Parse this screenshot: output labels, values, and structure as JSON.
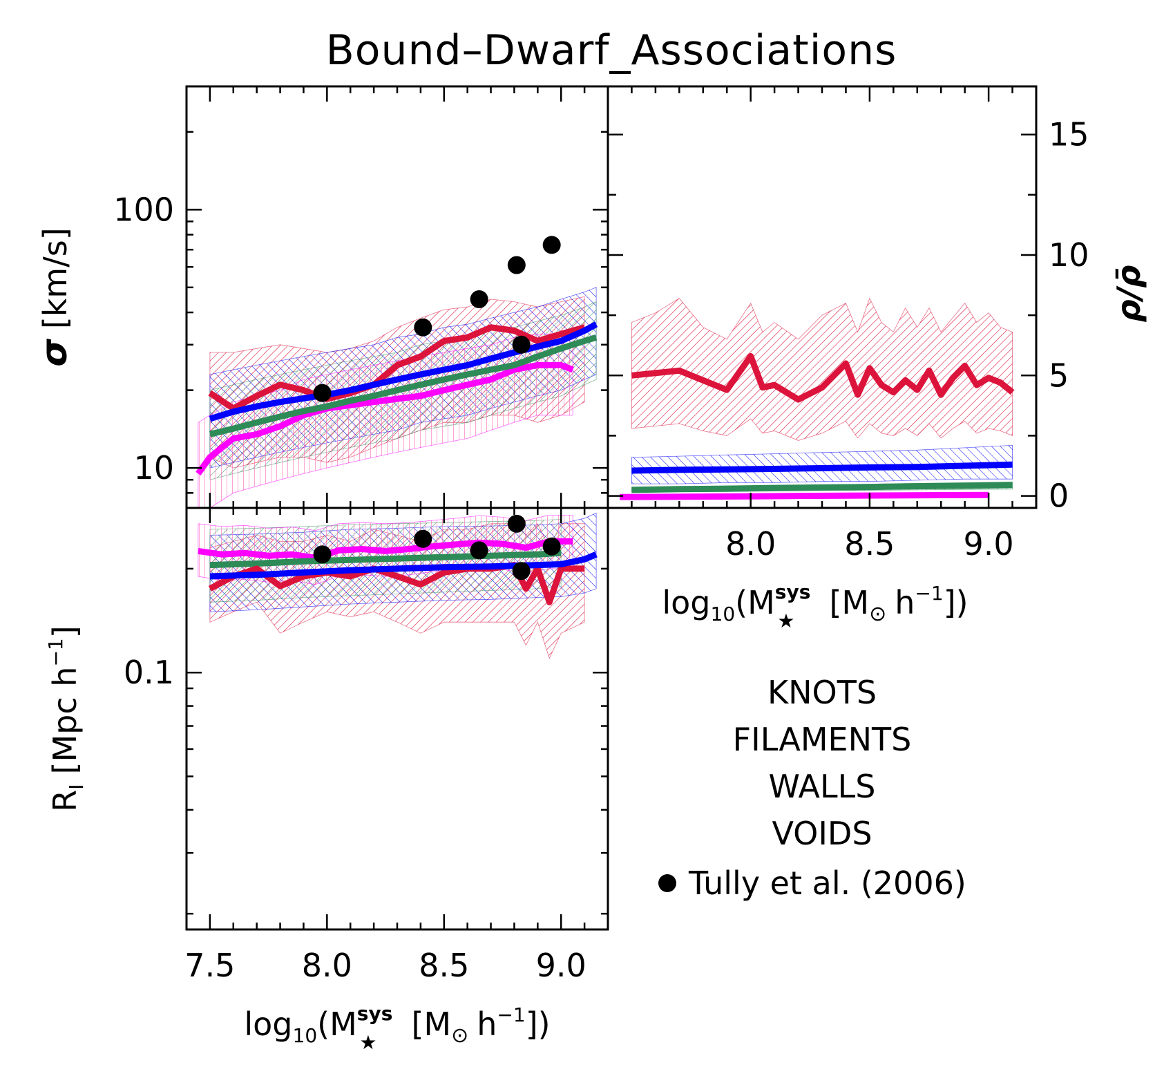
{
  "title": "Bound–Dwarf_Associations",
  "colors": {
    "knots": "#dc143c",
    "filaments": "#0000ff",
    "walls": "#2e8b57",
    "voids": "#ff00ff",
    "tully": "#000000"
  },
  "chart_data": [
    {
      "panel": "sigma",
      "type": "line",
      "ylabel": "σ [km/s]",
      "yscale": "log",
      "xlim": [
        7.4,
        9.2
      ],
      "ylim": [
        7,
        300
      ],
      "yticks": [
        10,
        100
      ],
      "ytick_labels": [
        "10",
        "100"
      ],
      "xticks": [
        7.5,
        8.0,
        8.5,
        9.0
      ],
      "series": [
        {
          "name": "KNOTS",
          "x": [
            7.5,
            7.6,
            7.7,
            7.8,
            7.9,
            8.0,
            8.1,
            8.2,
            8.3,
            8.4,
            8.5,
            8.6,
            8.7,
            8.8,
            8.9,
            9.0,
            9.1
          ],
          "y": [
            19.5,
            17,
            19,
            21,
            20,
            18.5,
            19.5,
            21,
            25,
            27,
            31,
            32,
            35,
            34,
            31,
            33,
            35
          ],
          "lo": [
            11,
            10,
            10.5,
            11,
            11,
            10.5,
            11,
            12,
            13,
            14,
            15,
            15,
            16,
            16,
            15,
            16,
            18
          ],
          "hi": [
            28,
            28,
            29,
            30,
            29,
            28,
            29,
            31,
            35,
            38,
            41,
            42,
            45,
            44,
            42,
            44,
            46
          ]
        },
        {
          "name": "FILAMENTS",
          "x": [
            7.5,
            7.6,
            7.7,
            7.8,
            7.9,
            8.0,
            8.1,
            8.2,
            8.3,
            8.4,
            8.5,
            8.6,
            8.7,
            8.8,
            8.9,
            9.0,
            9.1,
            9.15
          ],
          "y": [
            15.5,
            16.5,
            17.3,
            18,
            18.6,
            19.2,
            20,
            21,
            22,
            23,
            24,
            25,
            26.5,
            28,
            29.5,
            31,
            34,
            36
          ],
          "lo": [
            10,
            10.5,
            11,
            11.5,
            12,
            12.5,
            13,
            13.5,
            14,
            15,
            15.5,
            16,
            17,
            18,
            19,
            20,
            22,
            23
          ],
          "hi": [
            23,
            24,
            25,
            26,
            27,
            28,
            29,
            30,
            32,
            33,
            35,
            36,
            38,
            40,
            42,
            45,
            48,
            50
          ]
        },
        {
          "name": "WALLS",
          "x": [
            7.5,
            7.6,
            7.7,
            7.8,
            7.9,
            8.0,
            8.1,
            8.2,
            8.3,
            8.4,
            8.5,
            8.6,
            8.7,
            8.8,
            8.9,
            9.0,
            9.1,
            9.15
          ],
          "y": [
            13.5,
            14.2,
            15,
            15.8,
            16.6,
            17.3,
            18.2,
            19,
            20,
            21,
            22,
            23,
            24,
            25,
            27,
            29,
            31,
            32
          ],
          "lo": [
            9,
            9.5,
            10,
            10.5,
            11,
            11.5,
            12,
            12.5,
            13,
            14,
            14.5,
            15,
            16,
            17,
            18,
            19,
            21,
            22
          ],
          "hi": [
            20,
            21,
            22,
            23,
            24,
            25,
            26,
            27,
            28,
            30,
            31,
            32,
            34,
            35,
            37,
            39,
            42,
            44
          ]
        },
        {
          "name": "VOIDS",
          "x": [
            7.45,
            7.5,
            7.6,
            7.7,
            7.8,
            7.9,
            8.0,
            8.1,
            8.2,
            8.3,
            8.4,
            8.5,
            8.6,
            8.7,
            8.8,
            8.9,
            9.0,
            9.05
          ],
          "y": [
            9.5,
            11,
            13,
            13.5,
            14.5,
            16,
            17,
            17.5,
            18,
            18.5,
            19,
            20,
            21,
            22,
            24,
            25,
            25,
            24
          ],
          "lo": [
            6.5,
            7,
            8,
            8.5,
            9,
            9.5,
            10,
            10.5,
            11,
            11.5,
            12,
            12.5,
            13,
            14,
            15,
            16,
            16,
            16
          ],
          "hi": [
            15,
            16,
            18,
            19,
            20,
            22,
            23,
            24,
            25,
            26,
            27,
            28,
            29,
            30,
            32,
            33,
            33,
            32
          ]
        }
      ],
      "points": {
        "name": "Tully et al. (2006)",
        "x": [
          7.98,
          8.41,
          8.65,
          8.81,
          8.83,
          8.96
        ],
        "y": [
          19.5,
          35,
          45,
          61,
          30,
          73
        ]
      }
    },
    {
      "panel": "rho",
      "type": "line",
      "ylabel": "ρ/ρ̄",
      "ylim": [
        -0.5,
        17
      ],
      "yticks": [
        0,
        5,
        10,
        15
      ],
      "ytick_labels": [
        "0",
        "5",
        "10",
        "15"
      ],
      "xlim": [
        7.4,
        9.2
      ],
      "xticks": [
        8.0,
        8.5,
        9.0
      ],
      "xtick_labels": [
        "8.0",
        "8.5",
        "9.0"
      ],
      "xlabel_base": "log",
      "xlabel_sub": "10",
      "xlabel_mid": "(M",
      "xlabel_sup": "sys",
      "xlabel_star": "★",
      "xlabel_unit": "[M",
      "xlabel_sun": "⊙",
      "xlabel_h": "h",
      "xlabel_exp": "−1",
      "xlabel_end": "])",
      "series": [
        {
          "name": "KNOTS",
          "x": [
            7.5,
            7.6,
            7.7,
            7.8,
            7.9,
            8.0,
            8.05,
            8.1,
            8.2,
            8.3,
            8.4,
            8.45,
            8.5,
            8.55,
            8.6,
            8.65,
            8.7,
            8.75,
            8.8,
            8.85,
            8.9,
            8.95,
            9.0,
            9.05,
            9.1
          ],
          "y": [
            5.0,
            5.1,
            5.2,
            4.8,
            4.4,
            5.8,
            4.5,
            4.6,
            4.0,
            4.5,
            5.5,
            4.2,
            5.3,
            4.6,
            4.3,
            4.8,
            4.4,
            5.2,
            4.2,
            4.9,
            5.4,
            4.6,
            4.9,
            4.7,
            4.3
          ],
          "lo": [
            2.8,
            2.9,
            3.0,
            2.7,
            2.5,
            3.2,
            2.6,
            2.7,
            2.3,
            2.6,
            3.1,
            2.4,
            3.0,
            2.6,
            2.5,
            2.8,
            2.5,
            3.0,
            2.4,
            2.8,
            3.1,
            2.6,
            2.8,
            2.7,
            2.5
          ],
          "hi": [
            7.2,
            7.6,
            8.2,
            7.0,
            6.5,
            8.0,
            6.8,
            7.2,
            6.5,
            7.5,
            8.0,
            6.8,
            8.2,
            7.2,
            6.8,
            7.8,
            7.0,
            7.8,
            6.8,
            7.4,
            8.0,
            7.2,
            7.6,
            7.0,
            6.8
          ]
        },
        {
          "name": "FILAMENTS",
          "x": [
            7.5,
            7.7,
            7.9,
            8.1,
            8.3,
            8.5,
            8.7,
            8.9,
            9.1
          ],
          "y": [
            1.05,
            1.08,
            1.1,
            1.12,
            1.15,
            1.18,
            1.2,
            1.25,
            1.3
          ],
          "lo": [
            0.5,
            0.5,
            0.55,
            0.55,
            0.6,
            0.6,
            0.65,
            0.7,
            0.7
          ],
          "hi": [
            1.6,
            1.65,
            1.7,
            1.75,
            1.8,
            1.85,
            1.9,
            2.0,
            2.1
          ]
        },
        {
          "name": "WALLS",
          "x": [
            7.5,
            7.7,
            7.9,
            8.1,
            8.3,
            8.5,
            8.7,
            8.9,
            9.1
          ],
          "y": [
            0.25,
            0.28,
            0.3,
            0.33,
            0.35,
            0.37,
            0.4,
            0.42,
            0.45
          ],
          "lo": [
            0.15,
            0.17,
            0.18,
            0.2,
            0.22,
            0.23,
            0.25,
            0.27,
            0.28
          ],
          "hi": [
            0.35,
            0.38,
            0.4,
            0.43,
            0.46,
            0.49,
            0.52,
            0.55,
            0.58
          ]
        },
        {
          "name": "VOIDS",
          "x": [
            7.45,
            7.6,
            7.8,
            8.0,
            8.2,
            8.4,
            8.6,
            8.8,
            9.0
          ],
          "y": [
            -0.05,
            -0.04,
            -0.03,
            -0.02,
            0.0,
            0.01,
            0.02,
            0.03,
            0.04
          ]
        }
      ]
    },
    {
      "panel": "radius",
      "type": "line",
      "ylabel_main": "R",
      "ylabel_sub": "I",
      "ylabel_unit": "[Mpc h",
      "ylabel_exp": "−1",
      "ylabel_end": "]",
      "yscale": "log",
      "ylim": [
        0.018,
        0.3
      ],
      "yticks": [
        0.1
      ],
      "ytick_labels": [
        "0.1"
      ],
      "xlim": [
        7.4,
        9.2
      ],
      "xticks": [
        7.5,
        8.0,
        8.5,
        9.0
      ],
      "xtick_labels": [
        "7.5",
        "8.0",
        "8.5",
        "9.0"
      ],
      "xlabel_base": "log",
      "xlabel_sub": "10",
      "xlabel_mid": "(M",
      "xlabel_sup": "sys",
      "xlabel_star": "★",
      "xlabel_unit": "[M",
      "xlabel_sun": "⊙",
      "xlabel_h": "h",
      "xlabel_exp": "−1",
      "xlabel_end": "])",
      "series": [
        {
          "name": "KNOTS",
          "x": [
            7.5,
            7.6,
            7.7,
            7.8,
            7.9,
            8.0,
            8.1,
            8.2,
            8.3,
            8.4,
            8.5,
            8.6,
            8.7,
            8.8,
            8.85,
            8.9,
            8.95,
            9.0,
            9.1
          ],
          "y": [
            0.175,
            0.19,
            0.2,
            0.178,
            0.19,
            0.195,
            0.19,
            0.2,
            0.19,
            0.18,
            0.195,
            0.2,
            0.2,
            0.205,
            0.175,
            0.2,
            0.16,
            0.2,
            0.2
          ],
          "lo": [
            0.14,
            0.15,
            0.16,
            0.13,
            0.14,
            0.15,
            0.145,
            0.15,
            0.14,
            0.13,
            0.14,
            0.14,
            0.14,
            0.14,
            0.12,
            0.14,
            0.11,
            0.13,
            0.14
          ],
          "hi": [
            0.23,
            0.24,
            0.25,
            0.24,
            0.24,
            0.25,
            0.24,
            0.26,
            0.25,
            0.24,
            0.26,
            0.26,
            0.27,
            0.27,
            0.25,
            0.27,
            0.23,
            0.27,
            0.27
          ]
        },
        {
          "name": "FILAMENTS",
          "x": [
            7.5,
            7.7,
            7.9,
            8.1,
            8.3,
            8.5,
            8.7,
            8.9,
            9.0,
            9.1,
            9.15
          ],
          "y": [
            0.19,
            0.192,
            0.195,
            0.198,
            0.2,
            0.202,
            0.203,
            0.205,
            0.206,
            0.213,
            0.22
          ],
          "lo": [
            0.15,
            0.152,
            0.155,
            0.158,
            0.16,
            0.162,
            0.163,
            0.165,
            0.166,
            0.17,
            0.175
          ],
          "hi": [
            0.25,
            0.252,
            0.255,
            0.26,
            0.262,
            0.265,
            0.266,
            0.268,
            0.27,
            0.28,
            0.29
          ]
        },
        {
          "name": "WALLS",
          "x": [
            7.5,
            7.7,
            7.9,
            8.1,
            8.3,
            8.5,
            8.7,
            8.9,
            9.0
          ],
          "y": [
            0.205,
            0.207,
            0.21,
            0.212,
            0.214,
            0.216,
            0.218,
            0.22,
            0.222
          ],
          "lo": [
            0.16,
            0.162,
            0.165,
            0.167,
            0.169,
            0.171,
            0.173,
            0.175,
            0.177
          ],
          "hi": [
            0.26,
            0.262,
            0.265,
            0.268,
            0.27,
            0.272,
            0.274,
            0.276,
            0.278
          ]
        },
        {
          "name": "VOIDS",
          "x": [
            7.45,
            7.55,
            7.65,
            7.75,
            7.85,
            7.95,
            8.05,
            8.15,
            8.25,
            8.35,
            8.45,
            8.55,
            8.65,
            8.75,
            8.85,
            8.95,
            9.05
          ],
          "y": [
            0.225,
            0.22,
            0.222,
            0.218,
            0.22,
            0.215,
            0.226,
            0.228,
            0.225,
            0.228,
            0.232,
            0.235,
            0.238,
            0.236,
            0.23,
            0.24,
            0.24
          ],
          "lo": [
            0.19,
            0.185,
            0.186,
            0.183,
            0.185,
            0.18,
            0.19,
            0.192,
            0.19,
            0.192,
            0.196,
            0.198,
            0.2,
            0.199,
            0.194,
            0.2,
            0.2
          ],
          "hi": [
            0.27,
            0.265,
            0.267,
            0.262,
            0.264,
            0.258,
            0.27,
            0.272,
            0.27,
            0.272,
            0.276,
            0.28,
            0.285,
            0.282,
            0.276,
            0.286,
            0.286
          ]
        }
      ],
      "points": {
        "name": "Tully et al. (2006)",
        "x": [
          7.98,
          8.41,
          8.65,
          8.81,
          8.83,
          8.96
        ],
        "y": [
          0.22,
          0.244,
          0.226,
          0.27,
          0.197,
          0.232
        ]
      }
    }
  ],
  "legend": {
    "knots": "KNOTS",
    "filaments": "FILAMENTS",
    "walls": "WALLS",
    "voids": "VOIDS",
    "tully": "Tully et al. (2006)"
  },
  "sigma_axis": {
    "ylabel_sym": "σ",
    "ylabel_unit": "[km/s]"
  }
}
